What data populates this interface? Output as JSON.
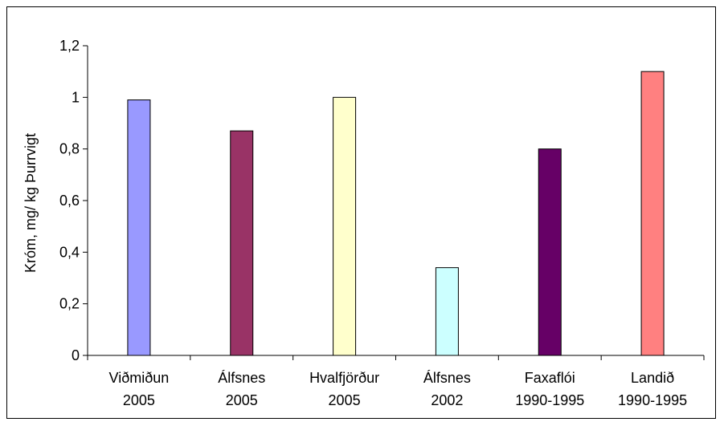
{
  "chart_data": {
    "type": "bar",
    "categories": [
      [
        "Viðmiðun",
        "2005"
      ],
      [
        "Álfsnes",
        "2005"
      ],
      [
        "Hvalfjörður",
        "2005"
      ],
      [
        "Álfsnes",
        "2002"
      ],
      [
        "Faxaflói",
        "1990-1995"
      ],
      [
        "Landið",
        "1990-1995"
      ]
    ],
    "values": [
      0.99,
      0.87,
      1.0,
      0.34,
      0.8,
      1.1
    ],
    "colors": [
      "#9999ff",
      "#993366",
      "#ffffcc",
      "#ccffff",
      "#660066",
      "#ff8080"
    ],
    "ylabel": "Króm, mg/ kg Þurrvigt",
    "ylim": [
      0,
      1.2
    ],
    "yticks": [
      0,
      0.2,
      0.4,
      0.6,
      0.8,
      1.0,
      1.2
    ],
    "ytick_labels": [
      "0",
      "0,2",
      "0,4",
      "0,6",
      "0,8",
      "1",
      "1,2"
    ],
    "grid": false,
    "legend": "none"
  }
}
